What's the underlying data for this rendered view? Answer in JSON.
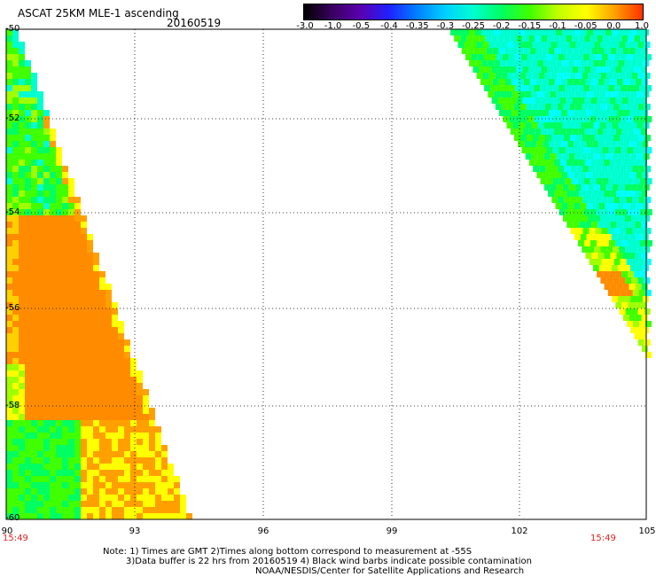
{
  "header": {
    "title": "ASCAT 25KM MLE-1 ascending",
    "date": "20160519"
  },
  "colorbar": {
    "labels": [
      "-3.0",
      "-1.0",
      "-0.5",
      "-0.4",
      "-0.35",
      "-0.3",
      "-0.25",
      "-0.2",
      "-0.15",
      "-0.1",
      "-0.05",
      "0.0",
      "1.0"
    ],
    "colors": [
      "#000000",
      "#3a0060",
      "#5a00b0",
      "#2020ff",
      "#0080ff",
      "#00d0ff",
      "#00ffd0",
      "#00ff60",
      "#40ff00",
      "#c0ff00",
      "#ffff00",
      "#ffa000",
      "#ff3000"
    ]
  },
  "map": {
    "y_axis_labels": [
      "-50",
      "-52",
      "-54",
      "-56",
      "-58",
      "-60"
    ],
    "x_axis_labels": [
      "90",
      "93",
      "96",
      "99",
      "102",
      "105"
    ],
    "time_left": "15:49",
    "time_right": "15:49",
    "background": "#ffffff",
    "grid_color": "#000000"
  },
  "footer": {
    "note_line1": "Note: 1) Times are GMT 2)Times along bottom correspond to measurement at -55S",
    "note_line2": "3)Data buffer is 22 hrs from 20160519 4) Black wind barbs indicate possible contamination",
    "note_line3": "NOAA/NESDIS/Center for Satellite Applications and Research"
  }
}
